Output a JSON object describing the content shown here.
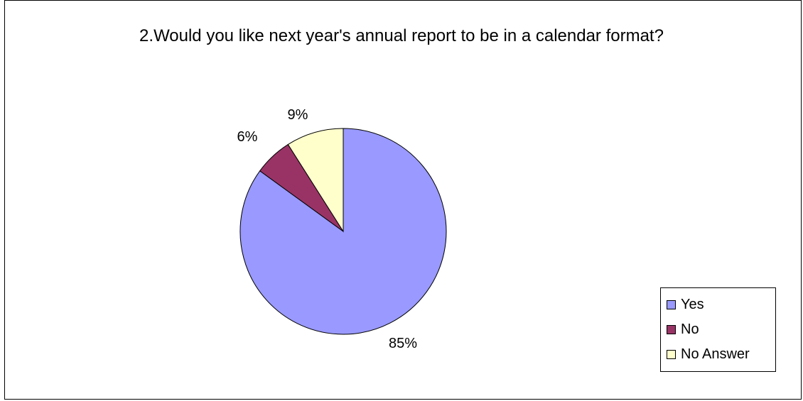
{
  "chart_data": {
    "type": "pie",
    "title": "2.Would you like next year's annual report to be in a calendar format?",
    "categories": [
      "Yes",
      "No",
      "No Answer"
    ],
    "values": [
      85,
      6,
      9
    ],
    "value_labels": [
      "85%",
      "6%",
      "9%"
    ],
    "colors": [
      "#9999FF",
      "#993366",
      "#FFFFCC"
    ],
    "legend_placement": "right"
  }
}
